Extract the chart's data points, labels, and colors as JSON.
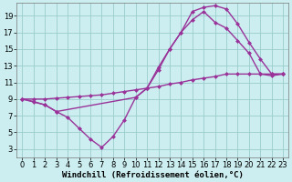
{
  "background_color": "#cceef0",
  "grid_color": "#99cccc",
  "line_color": "#993399",
  "line_width": 1.0,
  "marker": "D",
  "marker_size": 2.5,
  "xlabel": "Windchill (Refroidissement éolien,°C)",
  "xlabel_fontsize": 6.5,
  "tick_fontsize": 6,
  "xlim": [
    -0.5,
    23.5
  ],
  "ylim": [
    2.0,
    20.5
  ],
  "yticks": [
    3,
    5,
    7,
    9,
    11,
    13,
    15,
    17,
    19
  ],
  "xticks": [
    0,
    1,
    2,
    3,
    4,
    5,
    6,
    7,
    8,
    9,
    10,
    11,
    12,
    13,
    14,
    15,
    16,
    17,
    18,
    19,
    20,
    21,
    22,
    23
  ],
  "curve1_x": [
    0,
    1,
    2,
    3,
    4,
    5,
    6,
    7,
    8,
    9,
    10,
    11,
    12,
    13,
    14,
    15,
    16,
    17,
    18,
    19,
    20,
    21,
    22,
    23
  ],
  "curve1_y": [
    9.0,
    8.7,
    8.3,
    7.5,
    6.8,
    5.5,
    4.2,
    3.2,
    4.5,
    6.5,
    9.2,
    10.3,
    12.5,
    15.0,
    17.0,
    19.5,
    20.0,
    20.2,
    19.8,
    18.0,
    15.8,
    13.8,
    12.0,
    12.0
  ],
  "curve2_x": [
    0,
    2,
    3,
    10,
    11,
    12,
    13,
    14,
    15,
    16,
    17,
    18,
    19,
    20,
    21,
    22,
    23
  ],
  "curve2_y": [
    9.0,
    8.3,
    7.5,
    9.2,
    10.3,
    12.8,
    15.0,
    17.0,
    18.5,
    19.5,
    18.2,
    17.5,
    16.0,
    14.5,
    12.0,
    11.8,
    12.0
  ],
  "curve3_x": [
    0,
    1,
    2,
    3,
    4,
    5,
    6,
    7,
    8,
    9,
    10,
    11,
    12,
    13,
    14,
    15,
    16,
    17,
    18,
    19,
    20,
    21,
    22,
    23
  ],
  "curve3_y": [
    9.0,
    9.0,
    9.0,
    9.1,
    9.2,
    9.3,
    9.4,
    9.5,
    9.7,
    9.9,
    10.1,
    10.3,
    10.5,
    10.8,
    11.0,
    11.3,
    11.5,
    11.7,
    12.0,
    12.0,
    12.0,
    12.0,
    12.0,
    12.0
  ]
}
